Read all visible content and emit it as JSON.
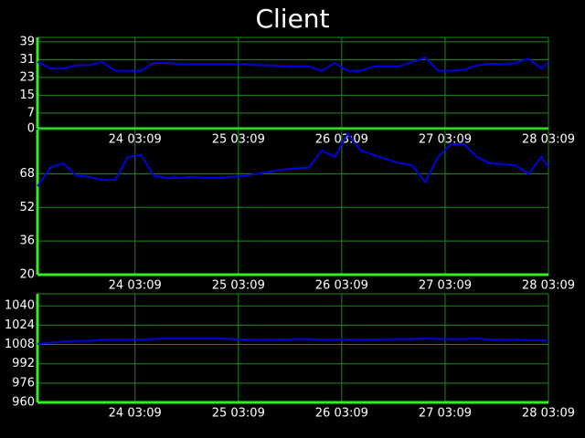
{
  "title": "Client",
  "chart_data": [
    {
      "type": "line",
      "color": "#0000dd",
      "x": [
        "23 04:30",
        "23 07:30",
        "23 10:30",
        "23 13:30",
        "23 16:30",
        "23 19:30",
        "23 22:30",
        "24 01:30",
        "24 04:30",
        "24 07:30",
        "24 10:30",
        "24 13:30",
        "24 16:30",
        "24 19:30",
        "24 22:30",
        "25 01:30",
        "25 04:30",
        "25 07:30",
        "25 10:30",
        "25 13:30",
        "25 16:30",
        "25 19:30",
        "25 22:30",
        "26 01:30",
        "26 04:30",
        "26 07:30",
        "26 10:30",
        "26 13:30",
        "26 16:30",
        "26 19:30",
        "26 22:30",
        "27 01:30",
        "27 04:30",
        "27 07:30",
        "27 10:30",
        "27 13:30",
        "27 16:30",
        "27 19:30",
        "27 22:30",
        "28 01:30",
        "28 03:09"
      ],
      "values": [
        30,
        27,
        27,
        28.5,
        28.5,
        30,
        26,
        26,
        26,
        29.5,
        29.5,
        29,
        29,
        29,
        29,
        29,
        29,
        28.5,
        28.5,
        28,
        28,
        28,
        26,
        29.5,
        26,
        26,
        28,
        28,
        28,
        30,
        32,
        26,
        26,
        26.5,
        28.5,
        29,
        29,
        29.5,
        31.5,
        27,
        30
      ],
      "xlim": [
        "23 04:30",
        "28 03:09"
      ],
      "xticks": [
        "24 03:09",
        "25 03:09",
        "26 03:09",
        "27 03:09",
        "28 03:09"
      ],
      "ylim": [
        0,
        41
      ],
      "yticks": [
        0,
        7,
        15,
        23,
        31,
        39
      ],
      "grid": true
    },
    {
      "type": "line",
      "color": "#0000dd",
      "x": [
        "23 04:30",
        "23 07:30",
        "23 10:30",
        "23 13:30",
        "23 16:30",
        "23 19:30",
        "23 22:30",
        "24 01:30",
        "24 04:30",
        "24 07:30",
        "24 10:30",
        "24 13:30",
        "24 16:30",
        "24 19:30",
        "24 22:30",
        "25 01:30",
        "25 04:30",
        "25 07:30",
        "25 10:30",
        "25 13:30",
        "25 16:30",
        "25 19:30",
        "25 22:30",
        "26 01:30",
        "26 04:30",
        "26 07:30",
        "26 10:30",
        "26 13:30",
        "26 16:30",
        "26 19:30",
        "26 22:30",
        "27 01:30",
        "27 04:30",
        "27 07:30",
        "27 10:30",
        "27 13:30",
        "27 16:30",
        "27 19:30",
        "27 22:30",
        "28 01:30",
        "28 03:09"
      ],
      "values": [
        62,
        71,
        73,
        67,
        66.5,
        65,
        65,
        76,
        77,
        67,
        66,
        66,
        66.5,
        66,
        66,
        66.5,
        67,
        68,
        69,
        70,
        70.5,
        71,
        79,
        76,
        87,
        79,
        77,
        75,
        73,
        72,
        64,
        76,
        82,
        82,
        76,
        73,
        72.5,
        72,
        68,
        76,
        71
      ],
      "xlim": [
        "23 04:30",
        "28 03:09"
      ],
      "xticks": [
        "24 03:09",
        "25 03:09",
        "26 03:09",
        "27 03:09",
        "28 03:09"
      ],
      "ylim": [
        20,
        89
      ],
      "yticks": [
        20,
        36,
        52,
        68
      ],
      "grid": true
    },
    {
      "type": "line",
      "color": "#0000dd",
      "x": [
        "23 04:30",
        "23 07:30",
        "23 10:30",
        "23 13:30",
        "23 16:30",
        "23 19:30",
        "23 22:30",
        "24 01:30",
        "24 04:30",
        "24 07:30",
        "24 10:30",
        "24 13:30",
        "24 16:30",
        "24 19:30",
        "24 22:30",
        "25 01:30",
        "25 04:30",
        "25 07:30",
        "25 10:30",
        "25 13:30",
        "25 16:30",
        "25 19:30",
        "25 22:30",
        "26 01:30",
        "26 04:30",
        "26 07:30",
        "26 10:30",
        "26 13:30",
        "26 16:30",
        "26 19:30",
        "26 22:30",
        "27 01:30",
        "27 04:30",
        "27 07:30",
        "27 10:30",
        "27 13:30",
        "27 16:30",
        "27 19:30",
        "27 22:30",
        "28 01:30",
        "28 03:09"
      ],
      "values": [
        1008.5,
        1009.5,
        1010.5,
        1011,
        1011,
        1012,
        1012,
        1012,
        1012,
        1012.5,
        1013,
        1013,
        1013,
        1013,
        1013,
        1012.5,
        1012,
        1012,
        1012,
        1012,
        1012.5,
        1012.5,
        1012,
        1012,
        1012,
        1012,
        1012,
        1012.5,
        1012.5,
        1012.5,
        1013,
        1012.5,
        1012.5,
        1012.5,
        1013,
        1012,
        1012,
        1012,
        1011.5,
        1011.5,
        1011
      ],
      "xlim": [
        "23 04:30",
        "28 03:09"
      ],
      "xticks": [
        "24 03:09",
        "25 03:09",
        "26 03:09",
        "27 03:09",
        "28 03:09"
      ],
      "ylim": [
        960,
        1050
      ],
      "yticks": [
        960,
        976,
        992,
        1008,
        1024,
        1040
      ],
      "grid": true
    }
  ]
}
